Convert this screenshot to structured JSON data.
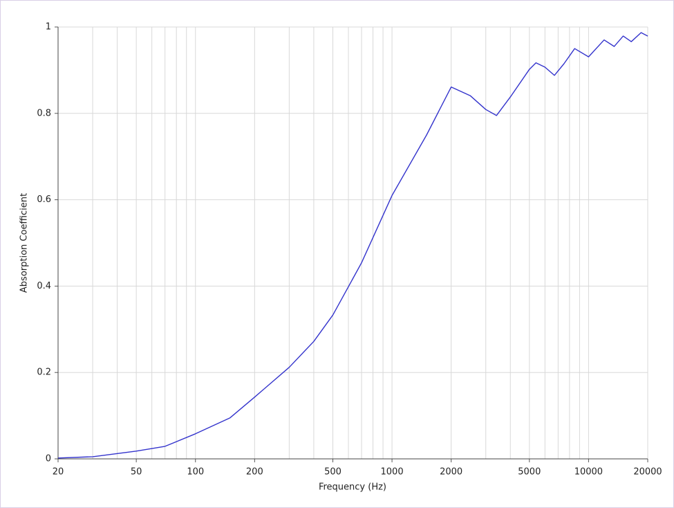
{
  "chart_data": {
    "type": "line",
    "log_x": true,
    "grid": true,
    "x_label": "Frequency (Hz)",
    "y_label": "Absorption Coefficient",
    "xlim": [
      20,
      20000
    ],
    "ylim": [
      0,
      1
    ],
    "xticks": [
      20,
      50,
      100,
      200,
      500,
      1000,
      2000,
      5000,
      10000,
      20000
    ],
    "xgrid": [
      30,
      40,
      60,
      70,
      80,
      90,
      300,
      400,
      600,
      700,
      800,
      900,
      3000,
      4000,
      6000,
      7000,
      8000,
      9000
    ],
    "yticks": [
      0,
      0.2,
      0.4,
      0.6,
      0.8,
      1
    ],
    "series": [
      {
        "name": "Absorption",
        "color": "#3333cc",
        "x": [
          20,
          30,
          50,
          70,
          100,
          150,
          200,
          300,
          400,
          500,
          700,
          1000,
          1500,
          2000,
          2500,
          3000,
          3400,
          4000,
          5000,
          5400,
          6000,
          6700,
          7500,
          8500,
          10000,
          12000,
          13500,
          15000,
          16500,
          18500,
          20000
        ],
        "values": [
          0.002,
          0.005,
          0.018,
          0.029,
          0.058,
          0.095,
          0.143,
          0.212,
          0.272,
          0.333,
          0.454,
          0.61,
          0.75,
          0.861,
          0.841,
          0.809,
          0.795,
          0.838,
          0.902,
          0.917,
          0.907,
          0.888,
          0.915,
          0.95,
          0.931,
          0.97,
          0.955,
          0.979,
          0.966,
          0.987,
          0.979
        ]
      }
    ]
  }
}
